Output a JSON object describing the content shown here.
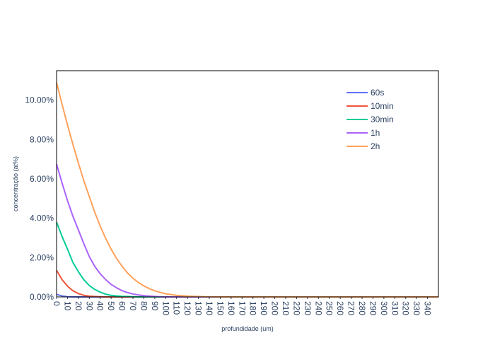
{
  "chart_data": {
    "type": "line",
    "xlabel": "profundidade (um)",
    "ylabel": "concentração (at%)",
    "xlim": [
      0,
      350
    ],
    "ylim": [
      0,
      0.115
    ],
    "x_ticks": [
      0,
      10,
      20,
      30,
      40,
      50,
      60,
      70,
      80,
      90,
      100,
      110,
      120,
      130,
      140,
      150,
      160,
      170,
      180,
      190,
      200,
      210,
      220,
      230,
      240,
      250,
      260,
      270,
      280,
      290,
      300,
      310,
      320,
      330,
      340
    ],
    "x_tick_labels": [
      "0",
      "10",
      "20",
      "30",
      "40",
      "50",
      "60",
      "70",
      "80",
      "90",
      "100",
      "110",
      "120",
      "130",
      "140",
      "150",
      "160",
      "170",
      "180",
      "190",
      "200",
      "210",
      "220",
      "230",
      "240",
      "250",
      "260",
      "270",
      "280",
      "290",
      "300",
      "310",
      "320",
      "330",
      "340"
    ],
    "y_ticks": [
      0,
      0.02,
      0.04,
      0.06,
      0.08,
      0.1
    ],
    "y_tick_labels": [
      "0.00%",
      "2.00%",
      "4.00%",
      "6.00%",
      "8.00%",
      "10.00%"
    ],
    "grid": false,
    "legend_position": "top-right",
    "x": [
      0,
      5,
      10,
      15,
      20,
      25,
      30,
      35,
      40,
      45,
      50,
      55,
      60,
      65,
      70,
      75,
      80,
      85,
      90,
      95,
      100,
      105,
      110,
      115,
      120,
      125,
      130,
      135,
      140,
      150,
      160,
      180,
      200,
      250,
      300,
      350
    ],
    "series": [
      {
        "name": "60s",
        "color": "#636efa",
        "values": [
          0.0013,
          0.0005,
          0.0001,
          0,
          0,
          0,
          0,
          0,
          0,
          0,
          0,
          0,
          0,
          0,
          0,
          0,
          0,
          0,
          0,
          0,
          0,
          0,
          0,
          0,
          0,
          0,
          0,
          0,
          0,
          0,
          0,
          0,
          0,
          0,
          0,
          0
        ]
      },
      {
        "name": "10min",
        "color": "#ef553b",
        "values": [
          0.0135,
          0.0088,
          0.0055,
          0.0031,
          0.0017,
          0.0008,
          0.0004,
          0.0002,
          0.0001,
          0,
          0,
          0,
          0,
          0,
          0,
          0,
          0,
          0,
          0,
          0,
          0,
          0,
          0,
          0,
          0,
          0,
          0,
          0,
          0,
          0,
          0,
          0,
          0,
          0,
          0,
          0
        ]
      },
      {
        "name": "30min",
        "color": "#00cc96",
        "values": [
          0.038,
          0.0308,
          0.0243,
          0.0175,
          0.0128,
          0.0087,
          0.0058,
          0.0038,
          0.0024,
          0.0014,
          0.0008,
          0.0005,
          0.0003,
          0.0002,
          0.0001,
          0,
          0,
          0,
          0,
          0,
          0,
          0,
          0,
          0,
          0,
          0,
          0,
          0,
          0,
          0,
          0,
          0,
          0,
          0,
          0,
          0
        ]
      },
      {
        "name": "1h",
        "color": "#ab63fa",
        "values": [
          0.0675,
          0.058,
          0.049,
          0.041,
          0.034,
          0.027,
          0.0205,
          0.0155,
          0.0118,
          0.0088,
          0.0064,
          0.0046,
          0.0032,
          0.0022,
          0.0015,
          0.001,
          0.0006,
          0.0004,
          0.0002,
          0.0001,
          0,
          0,
          0,
          0,
          0,
          0,
          0,
          0,
          0,
          0,
          0,
          0,
          0,
          0,
          0,
          0
        ]
      },
      {
        "name": "2h",
        "color": "#ffa15a",
        "values": [
          0.109,
          0.098,
          0.0875,
          0.0775,
          0.068,
          0.059,
          0.051,
          0.043,
          0.036,
          0.0298,
          0.0243,
          0.0195,
          0.0156,
          0.0122,
          0.0095,
          0.0073,
          0.0056,
          0.0042,
          0.0031,
          0.0023,
          0.0016,
          0.0012,
          0.0008,
          0.0006,
          0.0004,
          0.0003,
          0.0002,
          0.0001,
          0.0001,
          0,
          0,
          0,
          0,
          0,
          0,
          0
        ]
      }
    ]
  }
}
